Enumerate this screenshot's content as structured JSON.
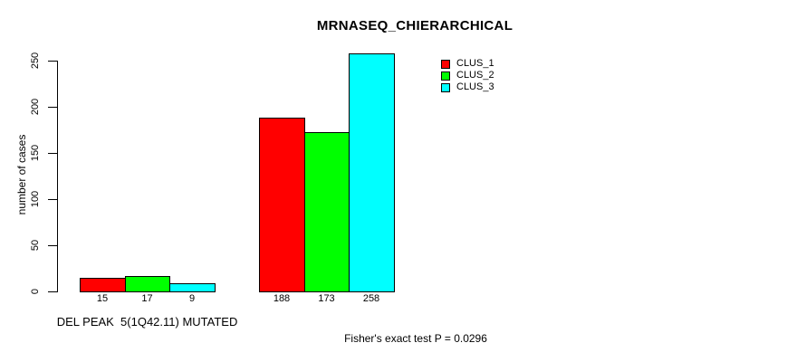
{
  "chart_data": {
    "type": "bar",
    "title": "MRNASEQ_CHIERARCHICAL",
    "ylabel": "number of cases",
    "xlabel": "",
    "ylim": [
      0,
      250
    ],
    "yticks": [
      0,
      50,
      100,
      150,
      200,
      250
    ],
    "grid": false,
    "legend_position": "top-right",
    "background": "#FFFFFF",
    "text_color": "#000000",
    "bar_border_color": "#000000",
    "series": [
      {
        "name": "CLUS_1",
        "color": "#FF0000"
      },
      {
        "name": "CLUS_2",
        "color": "#00FF00"
      },
      {
        "name": "CLUS_3",
        "color": "#00FFFF"
      }
    ],
    "groups": [
      {
        "label": "DEL PEAK  5(1Q42.11) MUTATED",
        "values": [
          15,
          17,
          9
        ]
      },
      {
        "label": "",
        "values": [
          188,
          173,
          258
        ]
      }
    ],
    "footnote": "Fisher's exact test P = 0.0296"
  }
}
